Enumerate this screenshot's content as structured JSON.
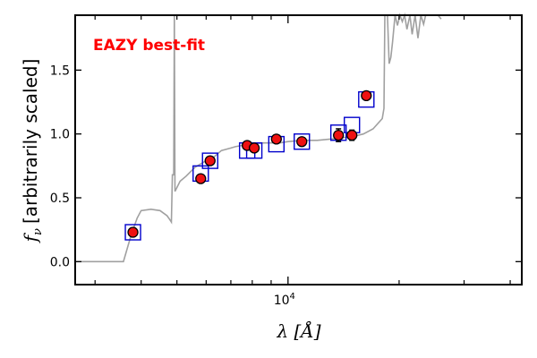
{
  "chart_data": {
    "type": "scatter",
    "annotation": "EAZY best-fit",
    "annotation_color": "#ff0000",
    "xlabel": "λ [Å]",
    "ylabel_symbol": "f",
    "ylabel_subscript": "ν",
    "ylabel_text": "[arbitrarily scaled]",
    "x_scale": "log",
    "xlim": [
      2650,
      43000
    ],
    "ylim": [
      -0.18,
      1.93
    ],
    "x_tick_label_base": "10",
    "x_tick_label_exp": "4",
    "x_major_ticks": [
      10000
    ],
    "x_minor_ticks": [
      3000,
      4000,
      5000,
      6000,
      7000,
      8000,
      9000,
      20000,
      30000,
      40000
    ],
    "y_ticks": [
      0.0,
      0.5,
      1.0,
      1.5
    ],
    "y_tick_labels": [
      "0.0",
      "0.5",
      "1.0",
      "1.5"
    ],
    "grid": false,
    "colors": {
      "template": "#a0a0a0",
      "model_box": "#0000cc",
      "observed_fill": "#ee1111",
      "observed_edge": "#000000"
    },
    "series": [
      {
        "kind": "template_curve",
        "points": [
          [
            2650,
            0.0
          ],
          [
            3580,
            0.0
          ],
          [
            3760,
            0.21
          ],
          [
            3900,
            0.34
          ],
          [
            4000,
            0.4
          ],
          [
            4250,
            0.41
          ],
          [
            4500,
            0.4
          ],
          [
            4700,
            0.36
          ],
          [
            4780,
            0.33
          ],
          [
            4830,
            0.31
          ],
          [
            4860,
            0.68
          ],
          [
            4900,
            0.68
          ],
          [
            4920,
            1.93
          ],
          [
            4940,
            0.55
          ],
          [
            5100,
            0.63
          ],
          [
            5300,
            0.67
          ],
          [
            5600,
            0.74
          ],
          [
            6000,
            0.79
          ],
          [
            6300,
            0.82
          ],
          [
            6600,
            0.87
          ],
          [
            7000,
            0.89
          ],
          [
            7200,
            0.9
          ],
          [
            7500,
            0.91
          ],
          [
            8000,
            0.92
          ],
          [
            8500,
            0.93
          ],
          [
            9000,
            0.93
          ],
          [
            9500,
            0.93
          ],
          [
            10000,
            0.94
          ],
          [
            11000,
            0.95
          ],
          [
            12000,
            0.95
          ],
          [
            13000,
            0.96
          ],
          [
            14000,
            0.97
          ],
          [
            15000,
            0.98
          ],
          [
            16000,
            1.0
          ],
          [
            17000,
            1.04
          ],
          [
            18000,
            1.12
          ],
          [
            18200,
            1.2
          ],
          [
            18300,
            1.93
          ],
          [
            18600,
            1.93
          ],
          [
            18800,
            1.55
          ],
          [
            19000,
            1.6
          ],
          [
            19200,
            1.72
          ],
          [
            19500,
            1.93
          ],
          [
            19800,
            1.85
          ],
          [
            20100,
            1.93
          ],
          [
            20400,
            1.88
          ],
          [
            20700,
            1.93
          ],
          [
            21000,
            1.82
          ],
          [
            21400,
            1.93
          ],
          [
            21700,
            1.78
          ],
          [
            22100,
            1.93
          ],
          [
            22500,
            1.75
          ],
          [
            22900,
            1.93
          ],
          [
            23300,
            1.86
          ],
          [
            23600,
            1.93
          ],
          [
            24000,
            1.93
          ],
          [
            25500,
            1.93
          ],
          [
            26000,
            1.9
          ]
        ]
      },
      {
        "kind": "model_boxes",
        "x": [
          3800,
          5800,
          6150,
          7750,
          8100,
          9300,
          10900,
          13700,
          14900,
          16300
        ],
        "y": [
          0.23,
          0.69,
          0.79,
          0.87,
          0.87,
          0.92,
          0.94,
          1.01,
          1.07,
          1.27
        ]
      },
      {
        "kind": "observed_points",
        "x": [
          3800,
          5800,
          6150,
          7750,
          8100,
          9300,
          10900,
          13700,
          14900,
          16300
        ],
        "y": [
          0.23,
          0.65,
          0.79,
          0.91,
          0.89,
          0.96,
          0.94,
          0.99,
          0.99,
          1.3
        ],
        "yerr": [
          0.01,
          0.02,
          0.02,
          0.02,
          0.02,
          0.03,
          0.02,
          0.05,
          0.04,
          0.02
        ]
      }
    ]
  }
}
